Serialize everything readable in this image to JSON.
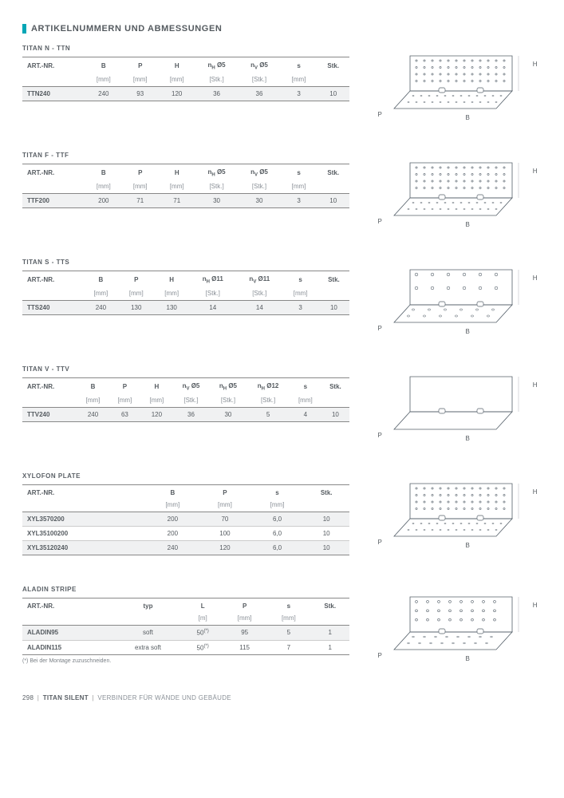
{
  "header": {
    "title": "ARTIKELNUMMERN UND ABMESSUNGEN"
  },
  "diagram_labels": {
    "H": "H",
    "B": "B",
    "P": "P"
  },
  "sections": [
    {
      "title": "TITAN N - TTN",
      "columns": [
        "ART.-NR.",
        "B",
        "P",
        "H",
        "n<sub>H</sub> Ø5",
        "n<sub>V</sub> Ø5",
        "s",
        "Stk."
      ],
      "units": [
        "",
        "[mm]",
        "[mm]",
        "[mm]",
        "[Stk.]",
        "[Stk.]",
        "[mm]",
        ""
      ],
      "rows": [
        {
          "cells": [
            "TTN240",
            "240",
            "93",
            "120",
            "36",
            "36",
            "3",
            "10"
          ],
          "shade": true
        }
      ],
      "draw_holes": "dense"
    },
    {
      "title": "TITAN F - TTF",
      "columns": [
        "ART.-NR.",
        "B",
        "P",
        "H",
        "n<sub>H</sub> Ø5",
        "n<sub>V</sub> Ø5",
        "s",
        "Stk."
      ],
      "units": [
        "",
        "[mm]",
        "[mm]",
        "[mm]",
        "[Stk.]",
        "[Stk.]",
        "[mm]",
        ""
      ],
      "rows": [
        {
          "cells": [
            "TTF200",
            "200",
            "71",
            "71",
            "30",
            "30",
            "3",
            "10"
          ],
          "shade": true
        }
      ],
      "draw_holes": "dense"
    },
    {
      "title": "TITAN S - TTS",
      "columns": [
        "ART.-NR.",
        "B",
        "P",
        "H",
        "n<sub>H</sub> Ø11",
        "n<sub>V</sub> Ø11",
        "s",
        "Stk."
      ],
      "units": [
        "",
        "[mm]",
        "[mm]",
        "[mm]",
        "[Stk.]",
        "[Stk.]",
        "[mm]",
        ""
      ],
      "rows": [
        {
          "cells": [
            "TTS240",
            "240",
            "130",
            "130",
            "14",
            "14",
            "3",
            "10"
          ],
          "shade": true
        }
      ],
      "draw_holes": "sparse"
    },
    {
      "title": "TITAN V - TTV",
      "columns": [
        "ART.-NR.",
        "B",
        "P",
        "H",
        "n<sub>V</sub> Ø5",
        "n<sub>H</sub> Ø5",
        "n<sub>H</sub> Ø12",
        "s",
        "Stk."
      ],
      "units": [
        "",
        "[mm]",
        "[mm]",
        "[mm]",
        "[Stk.]",
        "[Stk.]",
        "[Stk.]",
        "[mm]",
        ""
      ],
      "rows": [
        {
          "cells": [
            "TTV240",
            "240",
            "63",
            "120",
            "36",
            "30",
            "5",
            "4",
            "10"
          ],
          "shade": true
        }
      ],
      "draw_holes": "none"
    },
    {
      "title": "XYLOFON PLATE",
      "columns": [
        "ART.-NR.",
        "B",
        "P",
        "s",
        "Stk."
      ],
      "units": [
        "",
        "[mm]",
        "[mm]",
        "[mm]",
        ""
      ],
      "rows": [
        {
          "cells": [
            "XYL3570200",
            "200",
            "70",
            "6,0",
            "10"
          ],
          "shade": true
        },
        {
          "cells": [
            "XYL35100200",
            "200",
            "100",
            "6,0",
            "10"
          ],
          "shade": false
        },
        {
          "cells": [
            "XYL35120240",
            "240",
            "120",
            "6,0",
            "10"
          ],
          "shade": true
        }
      ],
      "draw_holes": "dense"
    },
    {
      "title": "ALADIN STRIPE",
      "columns": [
        "ART.-NR.",
        "typ",
        "L",
        "P",
        "s",
        "Stk."
      ],
      "units": [
        "",
        "",
        "[m]",
        "[mm]",
        "[mm]",
        ""
      ],
      "rows": [
        {
          "cells": [
            "ALADIN95",
            "soft",
            "50<sup>(*)</sup>",
            "95",
            "5",
            "1"
          ],
          "shade": true
        },
        {
          "cells": [
            "ALADIN115",
            "extra soft",
            "50<sup>(*)</sup>",
            "115",
            "7",
            "1"
          ],
          "shade": false
        }
      ],
      "footnote": "(*) Bei der Montage zuzuschneiden.",
      "draw_holes": "medium"
    }
  ],
  "footer": {
    "page": "298",
    "product": "TITAN SILENT",
    "desc": "VERBINDER FÜR WÄNDE  UND GEBÄUDE"
  }
}
